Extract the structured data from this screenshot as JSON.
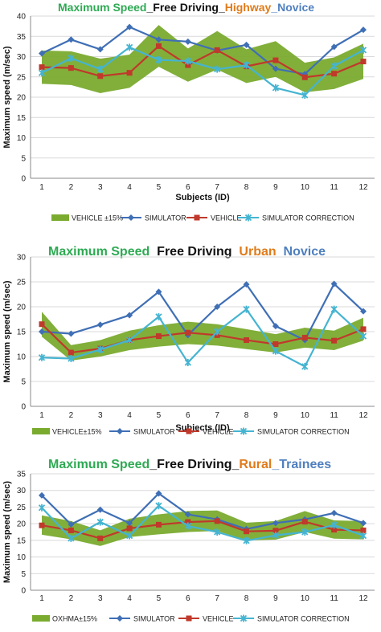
{
  "colors": {
    "band": "#7aab2f",
    "simulator": "#3f6fb5",
    "vehicle": "#c0392b",
    "correction": "#45b4d1",
    "title_green": "#2eaa53",
    "title_black": "#111111",
    "title_orange": "#e07b1a",
    "title_blue": "#4f7fbf"
  },
  "chart_data": [
    {
      "type": "line",
      "title_parts": [
        {
          "text": "Maximum Speed",
          "color": "title_green"
        },
        {
          "text": "_Free Driving_",
          "color": "title_black"
        },
        {
          "text": "Highway",
          "color": "title_orange"
        },
        {
          "text": "_Novice",
          "color": "title_blue"
        }
      ],
      "xlabel": "Subjects (ID)",
      "ylabel": "Maximum speed (m/sec)",
      "x": [
        1,
        2,
        3,
        4,
        5,
        6,
        7,
        8,
        9,
        10,
        11,
        12
      ],
      "ylim": [
        0,
        40
      ],
      "yticks": [
        0,
        5,
        10,
        15,
        20,
        25,
        30,
        35,
        40
      ],
      "band": {
        "name": "VEHICLE ±15%",
        "upper": [
          31.5,
          31.3,
          29.5,
          30.5,
          37.8,
          32.0,
          36.3,
          31.8,
          33.8,
          28.5,
          29.8,
          33.2
        ],
        "lower": [
          23.3,
          23.0,
          21.0,
          22.3,
          27.5,
          23.8,
          26.8,
          23.5,
          25.0,
          21.2,
          22.0,
          24.5
        ]
      },
      "series": [
        {
          "name": "SIMULATOR",
          "key": "simulator",
          "marker": "diamond",
          "values": [
            30.8,
            34.2,
            31.8,
            37.3,
            34.2,
            33.7,
            31.5,
            32.9,
            27.0,
            25.7,
            32.4,
            36.6
          ]
        },
        {
          "name": "VEHICLE",
          "key": "vehicle",
          "marker": "square",
          "values": [
            27.4,
            27.2,
            25.2,
            26.0,
            32.6,
            27.9,
            31.6,
            27.6,
            29.1,
            24.9,
            25.8,
            28.8
          ]
        },
        {
          "name": "SIMULATOR CORRECTION",
          "key": "correction",
          "marker": "star",
          "values": [
            26.0,
            29.6,
            26.9,
            32.3,
            29.2,
            28.9,
            26.9,
            27.9,
            22.3,
            20.5,
            27.7,
            31.6
          ]
        }
      ]
    },
    {
      "type": "line",
      "title_parts": [
        {
          "text": "Maximum Speed",
          "color": "title_green"
        },
        {
          "text": "_Free Driving_",
          "color": "title_black"
        },
        {
          "text": "Urban",
          "color": "title_orange"
        },
        {
          "text": "_Novice",
          "color": "title_blue"
        }
      ],
      "xlabel": "Subjects (ID)",
      "ylabel": "Maximum speed (m/sec)",
      "x": [
        1,
        2,
        3,
        4,
        5,
        6,
        7,
        8,
        9,
        10,
        11,
        12
      ],
      "ylim": [
        0,
        30
      ],
      "yticks": [
        0,
        5,
        10,
        15,
        20,
        25,
        30
      ],
      "band": {
        "name": "VEHICLE±15%",
        "upper": [
          19.0,
          12.3,
          13.3,
          15.2,
          16.3,
          17.0,
          16.5,
          15.5,
          14.5,
          15.8,
          15.2,
          17.8
        ],
        "lower": [
          14.0,
          9.2,
          10.0,
          11.3,
          12.0,
          12.5,
          12.2,
          11.5,
          10.8,
          11.8,
          11.3,
          13.2
        ]
      },
      "series": [
        {
          "name": "SIMULATOR",
          "key": "simulator",
          "marker": "diamond",
          "values": [
            15.0,
            14.6,
            16.4,
            18.3,
            23.0,
            14.3,
            20.0,
            24.5,
            16.1,
            13.3,
            24.6,
            19.1
          ]
        },
        {
          "name": "VEHICLE",
          "key": "vehicle",
          "marker": "square",
          "values": [
            16.5,
            10.8,
            11.6,
            13.3,
            14.1,
            14.8,
            14.3,
            13.3,
            12.5,
            13.8,
            13.2,
            15.5
          ]
        },
        {
          "name": "SIMULATOR CORRECTION",
          "key": "correction",
          "marker": "star",
          "values": [
            9.8,
            9.6,
            11.4,
            13.3,
            18.0,
            8.8,
            15.0,
            19.5,
            11.1,
            8.0,
            19.5,
            14.1
          ]
        }
      ]
    },
    {
      "type": "line",
      "title_parts": [
        {
          "text": "Maximum Speed",
          "color": "title_green"
        },
        {
          "text": "_Free Driving_",
          "color": "title_black"
        },
        {
          "text": "Rural",
          "color": "title_orange"
        },
        {
          "text": "_Trainees",
          "color": "title_blue"
        }
      ],
      "xlabel": "",
      "ylabel": "Maximum speed (m/sec)",
      "x": [
        1,
        2,
        3,
        4,
        5,
        6,
        7,
        8,
        9,
        10,
        11,
        12
      ],
      "ylim": [
        0,
        35
      ],
      "yticks": [
        0,
        5,
        10,
        15,
        20,
        25,
        30,
        35
      ],
      "band": {
        "name": "ΟΧΗΜΑ±15%",
        "upper": [
          22.5,
          20.8,
          18.0,
          21.5,
          22.8,
          23.8,
          24.0,
          20.3,
          20.8,
          23.8,
          21.0,
          20.8
        ],
        "lower": [
          16.7,
          15.3,
          13.3,
          16.0,
          16.8,
          17.5,
          17.8,
          15.0,
          15.2,
          17.5,
          15.5,
          15.3
        ]
      },
      "series": [
        {
          "name": "SIMULATOR",
          "key": "simulator",
          "marker": "diamond",
          "values": [
            28.5,
            19.8,
            24.2,
            20.2,
            29.1,
            22.8,
            21.3,
            18.4,
            20.2,
            21.3,
            23.2,
            20.2
          ]
        },
        {
          "name": "VEHICLE",
          "key": "vehicle",
          "marker": "square",
          "values": [
            19.5,
            18.0,
            15.6,
            18.6,
            19.7,
            20.5,
            20.8,
            17.7,
            17.9,
            20.6,
            18.2,
            18.0
          ]
        },
        {
          "name": "SIMULATOR CORRECTION",
          "key": "correction",
          "marker": "star",
          "values": [
            24.8,
            15.6,
            20.5,
            16.4,
            25.4,
            19.3,
            17.5,
            14.9,
            16.5,
            17.5,
            19.6,
            16.4
          ]
        }
      ]
    }
  ]
}
